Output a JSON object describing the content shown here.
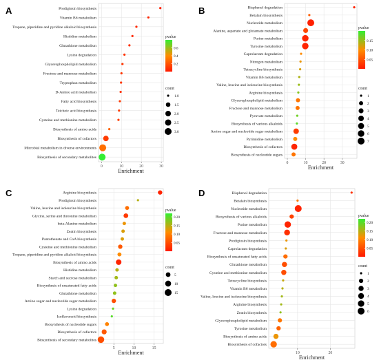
{
  "chart_data": [
    {
      "panel": "A",
      "type": "scatter",
      "xlabel": "Enrichment",
      "xlim": [
        -1.5,
        31
      ],
      "xticks": [
        0,
        10,
        20,
        30
      ],
      "categories": [
        "Prodigiosin biosynthesis",
        "Vitamin B6 metabolism",
        "Tropane, piperidine and pyridine alkaloid biosynthesis",
        "Histidine metabolism",
        "Glutathione metabolism",
        "Lysine degradation",
        "Glycerophospholipid metabolism",
        "Fructose and mannose metabolism",
        "Tryptophan metabolism",
        "D-Amino acid metabolism",
        "Fatty acid biosynthesis",
        "Teichoic acid biosynthesis",
        "Cysteine and methionine metabolism",
        "Biosynthesis of amino acids",
        "Biosynthesis of cofactors",
        "Microbial metabolism in diverse environments",
        "Biosynthesis of secondary metabolites"
      ],
      "enrichment": [
        29.5,
        23.5,
        17.5,
        15.5,
        14.0,
        11.5,
        10.5,
        10.0,
        9.8,
        9.6,
        9.2,
        8.8,
        8.5,
        3.9,
        2.2,
        0.6,
        0.3
      ],
      "count": [
        1,
        1,
        1,
        1,
        1,
        1,
        1,
        1,
        1,
        1,
        1,
        1,
        1,
        1,
        2,
        3,
        3
      ],
      "pvalue": [
        0.02,
        0.04,
        0.05,
        0.06,
        0.07,
        0.08,
        0.09,
        0.1,
        0.1,
        0.1,
        0.11,
        0.11,
        0.12,
        0.25,
        0.12,
        0.3,
        0.8
      ],
      "legend": {
        "pvalue_title": "pvalue",
        "pvalue_ticks": [
          "0.6",
          "0.4",
          "0.2"
        ],
        "pvalue_tick_values": [
          0.6,
          0.4,
          0.2
        ],
        "pvalue_range": [
          0.0,
          0.8
        ],
        "count_title": "count",
        "count_labels": [
          "1.0",
          "1.5",
          "2.0",
          "2.5",
          "3.0"
        ],
        "count_values": [
          1.0,
          1.5,
          2.0,
          2.5,
          3.0
        ],
        "count_range": [
          1,
          3
        ]
      }
    },
    {
      "panel": "B",
      "type": "scatter",
      "xlabel": "Enrichment",
      "xlim": [
        -1.5,
        38
      ],
      "xticks": [
        0,
        10,
        20,
        30
      ],
      "categories": [
        "Bisphenol degradation",
        "Betalain biosynthesis",
        "Nucleotide metabolism",
        "Alanine, aspartate and glutamate metabolism",
        "Purine metabolism",
        "Tyrosine metabolism",
        "Caprolactam degradation",
        "Nitrogen metabolism",
        "Tetracycline biosynthesis",
        "Vitamin B6 metabolism",
        "Valine, leucine and isoleucine biosynthesis",
        "Arginine biosynthesis",
        "Glycerophospholipid metabolism",
        "Fructose and mannose metabolism",
        "Pyruvate metabolism",
        "Biosynthesis of various alkaloids",
        "Amino sugar and nucleotide sugar metabolism",
        "Pyrimidine metabolism",
        "Biosynthesis of cofactors",
        "Biosynthesis of nucleotide sugars"
      ],
      "enrichment": [
        36.5,
        12.0,
        12.8,
        10.0,
        9.8,
        9.8,
        7.5,
        7.2,
        7.0,
        6.5,
        6.3,
        6.0,
        5.8,
        5.6,
        5.4,
        5.2,
        4.8,
        4.3,
        3.8,
        3.4
      ],
      "count": [
        1,
        1,
        7,
        3,
        6,
        6,
        1,
        1,
        1,
        1,
        1,
        1,
        2,
        2,
        1,
        1,
        4,
        2,
        5,
        2
      ],
      "pvalue": [
        0.01,
        0.06,
        0.005,
        0.04,
        0.01,
        0.01,
        0.1,
        0.11,
        0.12,
        0.14,
        0.15,
        0.16,
        0.08,
        0.08,
        0.17,
        0.18,
        0.03,
        0.1,
        0.01,
        0.08
      ],
      "legend": {
        "pvalue_title": "pvalue",
        "pvalue_ticks": [
          "0.15",
          "0.10",
          "0.05"
        ],
        "pvalue_tick_values": [
          0.15,
          0.1,
          0.05
        ],
        "pvalue_range": [
          0.0,
          0.2
        ],
        "count_title": "count",
        "count_labels": [
          "1",
          "2",
          "3",
          "4",
          "5",
          "6",
          "7"
        ],
        "count_values": [
          1,
          2,
          3,
          4,
          5,
          6,
          7
        ],
        "count_range": [
          1,
          7
        ]
      }
    },
    {
      "panel": "C",
      "type": "scatter",
      "xlabel": "Enrichment",
      "xlim": [
        1.2,
        17.3
      ],
      "xticks": [
        5,
        10,
        15
      ],
      "categories": [
        "Arginine biosynthesis",
        "Prodigiosin biosynthesis",
        "Valine, leucine and isoleucine biosynthesis",
        "Glycine, serine and threonine metabolism",
        "beta-Alanine metabolism",
        "Zeatin biosynthesis",
        "Pantothenate and CoA biosynthesis",
        "Cysteine and methionine metabolism",
        "Tropane, piperidine and pyridine alkaloid biosynthesis",
        "Biosynthesis of amino acids",
        "Histidine metabolism",
        "Starch and sucrose metabolism",
        "Biosynthesis of unsaturated fatty acids",
        "Glutathione metabolism",
        "Amino sugar and nucleotide sugar metabolism",
        "Lysine degradation",
        "Isoflavonoid biosynthesis",
        "Biosynthesis of nucleotide sugars",
        "Biosynthesis of cofactors",
        "Biosynthesis of secondary metabolites"
      ],
      "enrichment": [
        16.5,
        11.0,
        8.3,
        8.0,
        7.6,
        7.3,
        7.1,
        6.6,
        6.4,
        6.2,
        5.8,
        5.6,
        5.4,
        5.2,
        5.0,
        4.8,
        4.5,
        3.3,
        2.6,
        1.8
      ],
      "count": [
        4,
        1,
        3,
        5,
        2,
        2,
        2,
        4,
        3,
        8,
        2,
        2,
        2,
        2,
        4,
        1,
        1,
        3,
        6,
        13
      ],
      "pvalue": [
        0.01,
        0.15,
        0.08,
        0.03,
        0.12,
        0.13,
        0.13,
        0.06,
        0.11,
        0.01,
        0.15,
        0.16,
        0.17,
        0.17,
        0.05,
        0.19,
        0.2,
        0.1,
        0.06,
        0.05
      ],
      "legend": {
        "pvalue_title": "pvalue",
        "pvalue_ticks": [
          "0.20",
          "0.15",
          "0.10",
          "0.05"
        ],
        "pvalue_tick_values": [
          0.2,
          0.15,
          0.1,
          0.05
        ],
        "pvalue_range": [
          0.0,
          0.22
        ],
        "count_title": "count",
        "count_labels": [
          "5",
          "10",
          "15"
        ],
        "count_values": [
          5,
          10,
          15
        ],
        "count_range": [
          1,
          15
        ]
      }
    },
    {
      "panel": "D",
      "type": "scatter",
      "xlabel": "Enrichment",
      "xlim": [
        1.2,
        27.5
      ],
      "xticks": [
        10,
        20
      ],
      "categories": [
        "Bisphenol degradation",
        "Betalain biosynthesis",
        "Nucleotide metabolism",
        "Biosynthesis of various alkaloids",
        "Purine metabolism",
        "Fructose and mannose metabolism",
        "Prodigiosin biosynthesis",
        "Caprolactam degradation",
        "Biosynthesis of unsaturated fatty acids",
        "Glutathione metabolism",
        "Cysteine and methionine metabolism",
        "Tetracycline biosynthesis",
        "Vitamin B6 metabolism",
        "Valine, leucine and isoleucine biosynthesis",
        "Arginine biosynthesis",
        "Zeatin biosynthesis",
        "Glycerophospholipid metabolism",
        "Tyrosine metabolism",
        "Biosynthesis of amino acids",
        "Biosynthesis of cofactors"
      ],
      "enrichment": [
        26.5,
        10.0,
        10.2,
        8.2,
        7.0,
        6.8,
        6.6,
        6.4,
        6.3,
        6.0,
        5.8,
        5.6,
        5.4,
        5.2,
        5.0,
        4.8,
        4.6,
        4.2,
        3.4,
        2.7
      ],
      "count": [
        1,
        1,
        6,
        2,
        5,
        4,
        1,
        1,
        2,
        3,
        3,
        1,
        1,
        1,
        1,
        1,
        2,
        2,
        3,
        5
      ],
      "pvalue": [
        0.02,
        0.09,
        0.01,
        0.04,
        0.01,
        0.02,
        0.12,
        0.13,
        0.08,
        0.05,
        0.05,
        0.14,
        0.15,
        0.16,
        0.16,
        0.17,
        0.09,
        0.07,
        0.12,
        0.08
      ],
      "legend": {
        "pvalue_title": "pvalue",
        "pvalue_ticks": [
          "0.20",
          "0.15",
          "0.10",
          "0.05"
        ],
        "pvalue_tick_values": [
          0.2,
          0.15,
          0.1,
          0.05
        ],
        "pvalue_range": [
          0.0,
          0.22
        ],
        "count_title": "count",
        "count_labels": [
          "1",
          "2",
          "3",
          "4",
          "5",
          "6"
        ],
        "count_values": [
          1,
          2,
          3,
          4,
          5,
          6
        ],
        "count_range": [
          1,
          6
        ]
      }
    }
  ],
  "colors": {
    "low_pvalue": "#ff1a00",
    "mid_pvalue": "#ff8c00",
    "high_pvalue": "#33ee33",
    "panel_bg": "#ffffff",
    "grid": "#e6e6e6"
  }
}
